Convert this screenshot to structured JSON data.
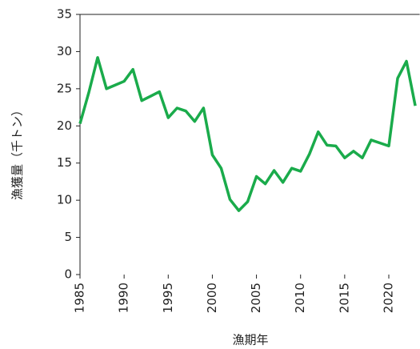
{
  "chart_data": {
    "type": "line",
    "x_label": "漁期年",
    "y_label": "漁獲量（千トン）",
    "x": [
      1985,
      1986,
      1987,
      1988,
      1989,
      1990,
      1991,
      1992,
      1993,
      1994,
      1995,
      1996,
      1997,
      1998,
      1999,
      2000,
      2001,
      2002,
      2003,
      2004,
      2005,
      2006,
      2007,
      2008,
      2009,
      2010,
      2011,
      2012,
      2013,
      2014,
      2015,
      2016,
      2017,
      2018,
      2019,
      2020,
      2021,
      2022,
      2023
    ],
    "series": [
      {
        "color": "#1aab4b",
        "values": [
          20.3,
          24.5,
          29.2,
          25.0,
          25.5,
          26.0,
          27.6,
          23.4,
          24.0,
          24.6,
          21.1,
          22.4,
          22.0,
          20.6,
          22.4,
          16.1,
          14.3,
          10.1,
          8.6,
          9.8,
          13.2,
          12.2,
          14.0,
          12.4,
          14.3,
          13.9,
          16.2,
          19.2,
          17.4,
          17.3,
          15.7,
          16.6,
          15.7,
          18.1,
          17.7,
          17.3,
          26.4,
          28.7,
          22.7
        ]
      }
    ],
    "xlim": [
      1985,
      2023.5
    ],
    "xticks": [
      1985,
      1990,
      1995,
      2000,
      2005,
      2010,
      2015,
      2020
    ],
    "ylim": [
      0,
      35
    ],
    "yticks": [
      0,
      5,
      10,
      15,
      20,
      25,
      30,
      35
    ]
  }
}
